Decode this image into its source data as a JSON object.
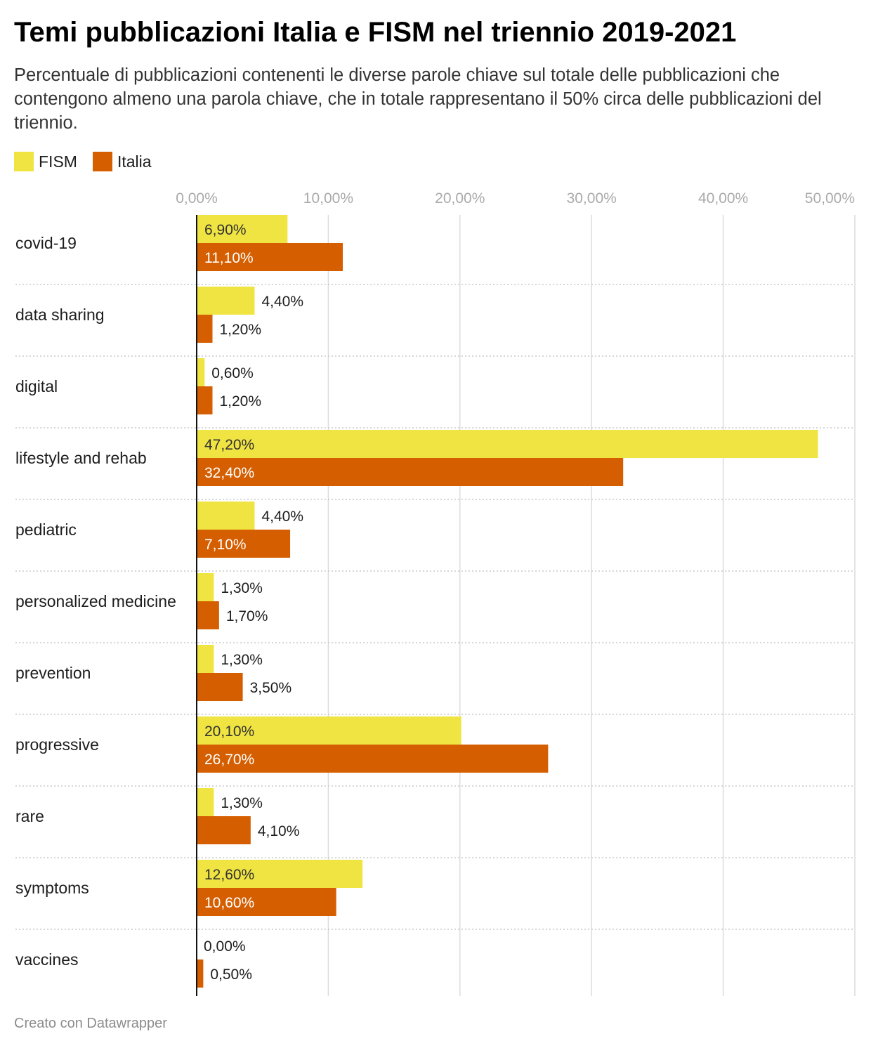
{
  "title": "Temi pubblicazioni Italia e FISM nel triennio 2019-2021",
  "subtitle": "Percentuale di pubblicazioni contenenti le diverse parole chiave sul totale delle pubblicazioni che contengono almeno una parola chiave, che in totale rappresentano il 50% circa delle pubblicazioni del triennio.",
  "footer": "Creato con Datawrapper",
  "colors": {
    "FISM": "#f0e442",
    "Italia": "#d55e00",
    "grid": "#dcdcdc",
    "tick_label": "#aaaaaa",
    "separator": "#c8c8c8"
  },
  "chart_data": {
    "type": "bar",
    "orientation": "horizontal",
    "legend_position": "top-left",
    "grid": true,
    "xlim": [
      0,
      50
    ],
    "ticks": [
      0,
      10,
      20,
      30,
      40,
      50
    ],
    "tick_labels": [
      "0,00%",
      "10,00%",
      "20,00%",
      "30,00%",
      "40,00%",
      "50,00%"
    ],
    "categories": [
      "covid-19",
      "data sharing",
      "digital",
      "lifestyle and rehab",
      "pediatric",
      "personalized medicine",
      "prevention",
      "progressive",
      "rare",
      "symptoms",
      "vaccines"
    ],
    "series": [
      {
        "name": "FISM",
        "values": [
          6.9,
          4.4,
          0.6,
          47.2,
          4.4,
          1.3,
          1.3,
          20.1,
          1.3,
          12.6,
          0.0
        ],
        "labels": [
          "6,90%",
          "4,40%",
          "0,60%",
          "47,20%",
          "4,40%",
          "1,30%",
          "1,30%",
          "20,10%",
          "1,30%",
          "12,60%",
          "0,00%"
        ]
      },
      {
        "name": "Italia",
        "values": [
          11.1,
          1.2,
          1.2,
          32.4,
          7.1,
          1.7,
          3.5,
          26.7,
          4.1,
          10.6,
          0.5
        ],
        "labels": [
          "11,10%",
          "1,20%",
          "1,20%",
          "32,40%",
          "7,10%",
          "1,70%",
          "3,50%",
          "26,70%",
          "4,10%",
          "10,60%",
          "0,50%"
        ]
      }
    ]
  }
}
